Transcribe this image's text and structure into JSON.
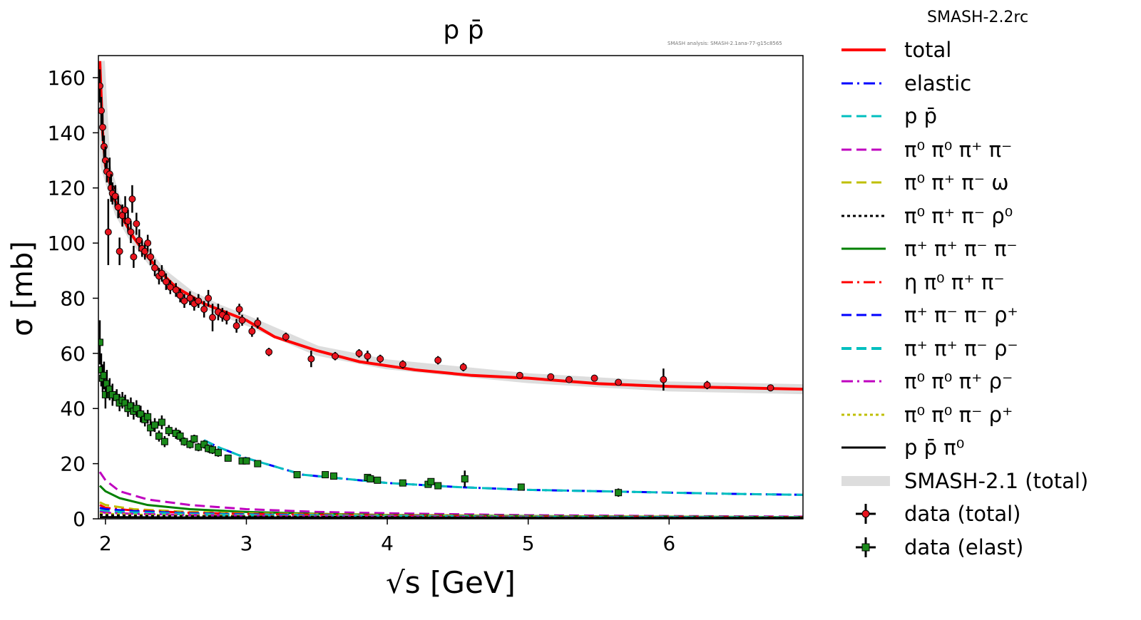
{
  "title": "p p̄",
  "watermark": "SMASH analysis: SMASH-2.1ana-77-g15c8565",
  "legend_title": "SMASH-2.2rc",
  "legend": [
    {
      "label": "total",
      "color": "#ff0000",
      "style": "solid",
      "width": 4
    },
    {
      "label": "elastic",
      "color": "#0000ff",
      "style": "dashdot",
      "width": 3
    },
    {
      "label": "p p̄",
      "color": "#00bfbf",
      "style": "dash",
      "width": 3
    },
    {
      "label": "π⁰ π⁰ π⁺ π⁻",
      "color": "#bf00bf",
      "style": "dash",
      "width": 3
    },
    {
      "label": "π⁰ π⁺ π⁻ ω",
      "color": "#bfbf00",
      "style": "dash",
      "width": 3
    },
    {
      "label": "π⁰ π⁺ π⁻ ρ⁰",
      "color": "#000000",
      "style": "dot",
      "width": 3
    },
    {
      "label": "π⁺ π⁺ π⁻ π⁻",
      "color": "#008000",
      "style": "solid",
      "width": 3
    },
    {
      "label": "η π⁰ π⁺ π⁻",
      "color": "#ff0000",
      "style": "dashdot",
      "width": 3
    },
    {
      "label": "π⁺ π⁻ π⁻ ρ⁺",
      "color": "#0000ff",
      "style": "dash",
      "width": 3
    },
    {
      "label": "π⁺ π⁺ π⁻ ρ⁻",
      "color": "#00bfbf",
      "style": "dash",
      "width": 4
    },
    {
      "label": "π⁰ π⁰ π⁺ ρ⁻",
      "color": "#bf00bf",
      "style": "dashdot",
      "width": 3
    },
    {
      "label": "π⁰ π⁰ π⁻ ρ⁺",
      "color": "#bfbf00",
      "style": "dot",
      "width": 3
    },
    {
      "label": "p p̄ π⁰",
      "color": "#000000",
      "style": "solid",
      "width": 3
    },
    {
      "label": "SMASH-2.1 (total)",
      "color": "#dddddd",
      "style": "band",
      "width": 14
    },
    {
      "label": "data (total)",
      "color": "#e8141e",
      "style": "marker-circle",
      "width": 3
    },
    {
      "label": "data (elast)",
      "color": "#1a8a1a",
      "style": "marker-square",
      "width": 3
    }
  ],
  "chart_data": {
    "type": "scatter",
    "xlabel": "√s [GeV]",
    "ylabel": "σ [mb]",
    "xlim": [
      1.95,
      6.95
    ],
    "ylim": [
      0,
      168
    ],
    "xticks": [
      2,
      3,
      4,
      5,
      6
    ],
    "yticks": [
      0,
      20,
      40,
      60,
      80,
      100,
      120,
      140,
      160
    ],
    "grid": false,
    "legend_position": "outside-right",
    "series": [
      {
        "name": "total",
        "kind": "line",
        "color": "#ff0000",
        "x": [
          1.96,
          1.98,
          2.0,
          2.05,
          2.1,
          2.2,
          2.3,
          2.4,
          2.5,
          2.6,
          2.7,
          2.8,
          2.9,
          3.0,
          3.2,
          3.5,
          3.8,
          4.2,
          4.6,
          5.0,
          5.5,
          6.0,
          6.5,
          6.95
        ],
        "y": [
          166,
          140,
          128,
          118,
          111,
          102,
          95,
          89,
          84,
          81,
          78,
          76,
          74,
          72,
          66,
          61,
          57,
          54,
          52,
          51,
          49,
          48,
          47.5,
          47
        ]
      },
      {
        "name": "SMASH-2.1 (total)",
        "kind": "band",
        "color": "#dddddd",
        "x": [
          1.96,
          2.0,
          2.1,
          2.2,
          2.4,
          2.6,
          2.8,
          3.0,
          3.5,
          4.0,
          5.0,
          6.0,
          6.95
        ],
        "y": [
          166,
          128,
          111,
          102,
          89,
          81,
          76,
          72,
          61,
          56,
          51,
          48,
          47
        ]
      },
      {
        "name": "elastic",
        "kind": "line",
        "color": "#0000ff",
        "x": [
          2.7,
          2.8,
          3.0,
          3.2,
          3.4,
          3.6,
          3.8,
          4.0,
          4.5,
          5.0,
          5.5,
          6.0,
          6.5,
          6.95
        ],
        "y": [
          28.5,
          26,
          22,
          19,
          16,
          15,
          14,
          13,
          11.5,
          10.5,
          10,
          9.5,
          9,
          8.7
        ]
      },
      {
        "name": "p p̄",
        "kind": "line",
        "color": "#00bfbf",
        "x": [
          2.7,
          2.8,
          3.0,
          3.2,
          3.4,
          3.6,
          3.8,
          4.0,
          4.5,
          5.0,
          5.5,
          6.0,
          6.5,
          6.95
        ],
        "y": [
          28.5,
          26,
          22,
          19,
          16,
          15,
          14,
          13,
          11.5,
          10.5,
          10,
          9.5,
          9,
          8.7
        ]
      },
      {
        "name": "π⁰ π⁰ π⁺ π⁻",
        "kind": "line",
        "color": "#bf00bf",
        "x": [
          1.96,
          2.0,
          2.1,
          2.3,
          2.6,
          3.0,
          3.5,
          4.0,
          5.0,
          6.0,
          6.95
        ],
        "y": [
          17,
          14,
          10,
          7,
          5,
          3.5,
          2.5,
          2,
          1.3,
          1,
          0.8
        ]
      },
      {
        "name": "π⁺ π⁺ π⁻ π⁻",
        "kind": "line",
        "color": "#008000",
        "x": [
          1.96,
          2.0,
          2.1,
          2.3,
          2.6,
          3.0,
          3.5,
          4.0,
          5.0,
          6.0,
          6.95
        ],
        "y": [
          12,
          10,
          7.5,
          5,
          3.5,
          2.5,
          1.8,
          1.4,
          1,
          0.8,
          0.6
        ]
      },
      {
        "name": "π⁰ π⁺ π⁻ ω",
        "kind": "line",
        "color": "#bfbf00",
        "x": [
          1.96,
          2.0,
          2.2,
          2.6,
          3.0,
          4.0,
          5.0,
          6.95
        ],
        "y": [
          6,
          5,
          3.5,
          2.5,
          2,
          1.3,
          0.9,
          0.6
        ]
      },
      {
        "name": "η π⁰ π⁺ π⁻",
        "kind": "line",
        "color": "#ff0000",
        "x": [
          1.96,
          2.0,
          2.2,
          2.6,
          3.0,
          4.0,
          5.0,
          6.95
        ],
        "y": [
          5,
          4,
          3,
          2.2,
          1.8,
          1.2,
          0.8,
          0.5
        ]
      },
      {
        "name": "π⁺ π⁻ π⁻ ρ⁺",
        "kind": "line",
        "color": "#0000ff",
        "x": [
          1.96,
          2.0,
          2.2,
          2.6,
          3.0,
          4.0,
          5.0,
          6.95
        ],
        "y": [
          4,
          3.5,
          2.8,
          2,
          1.6,
          1,
          0.7,
          0.4
        ]
      },
      {
        "name": "π⁺ π⁺ π⁻ ρ⁻",
        "kind": "line",
        "color": "#00bfbf",
        "x": [
          1.96,
          2.0,
          2.2,
          2.6,
          3.0,
          4.0,
          5.0,
          6.95
        ],
        "y": [
          3,
          2.6,
          2.2,
          1.7,
          1.3,
          0.9,
          0.6,
          0.4
        ]
      },
      {
        "name": "π⁰ π⁰ π⁺ ρ⁻",
        "kind": "line",
        "color": "#bf00bf",
        "x": [
          1.96,
          2.0,
          2.2,
          2.6,
          3.0,
          4.0,
          5.0,
          6.95
        ],
        "y": [
          2.5,
          2.2,
          1.8,
          1.4,
          1.1,
          0.8,
          0.5,
          0.3
        ]
      },
      {
        "name": "π⁰ π⁰ π⁻ ρ⁺",
        "kind": "line",
        "color": "#bfbf00",
        "x": [
          1.96,
          2.0,
          2.2,
          2.6,
          3.0,
          4.0,
          5.0,
          6.95
        ],
        "y": [
          2,
          1.8,
          1.5,
          1.2,
          1,
          0.7,
          0.5,
          0.3
        ]
      },
      {
        "name": "π⁰ π⁺ π⁻ ρ⁰",
        "kind": "line",
        "color": "#000000",
        "x": [
          1.96,
          2.0,
          2.2,
          2.6,
          3.0,
          4.0,
          5.0,
          6.95
        ],
        "y": [
          1.5,
          1.3,
          1.1,
          0.9,
          0.8,
          0.6,
          0.4,
          0.3
        ]
      },
      {
        "name": "p p̄ π⁰",
        "kind": "line",
        "color": "#000000",
        "x": [
          1.96,
          2.0,
          2.5,
          3.0,
          4.0,
          5.0,
          6.95
        ],
        "y": [
          0.6,
          0.6,
          0.5,
          0.5,
          0.4,
          0.3,
          0.3
        ]
      },
      {
        "name": "data (total)",
        "kind": "points",
        "marker": "circle",
        "color": "#e8141e",
        "x": [
          1.96,
          1.97,
          1.98,
          1.99,
          2.0,
          2.01,
          2.02,
          2.03,
          2.04,
          2.05,
          2.07,
          2.09,
          2.1,
          2.12,
          2.14,
          2.16,
          2.18,
          2.19,
          2.2,
          2.22,
          2.24,
          2.26,
          2.28,
          2.3,
          2.32,
          2.35,
          2.38,
          2.4,
          2.43,
          2.46,
          2.5,
          2.53,
          2.56,
          2.6,
          2.63,
          2.66,
          2.7,
          2.73,
          2.76,
          2.8,
          2.83,
          2.86,
          2.93,
          2.95,
          2.97,
          3.04,
          3.08,
          3.16,
          3.28,
          3.46,
          3.63,
          3.8,
          3.86,
          3.95,
          4.11,
          4.36,
          4.54,
          4.94,
          5.16,
          5.29,
          5.47,
          5.64,
          5.96,
          6.27,
          6.72
        ],
        "y": [
          157,
          148,
          142,
          135,
          130,
          126,
          104,
          125,
          120,
          118,
          117,
          113,
          97,
          110,
          112,
          108,
          104,
          116,
          95,
          107,
          101,
          98,
          97,
          100,
          95,
          91,
          88,
          89,
          86,
          84,
          83,
          81,
          79,
          80,
          78,
          79,
          76,
          80,
          73,
          75,
          74,
          73,
          70,
          76,
          72,
          68,
          71,
          60.5,
          66,
          58,
          59,
          60,
          59,
          58,
          56,
          57.5,
          55,
          52,
          51.5,
          50.5,
          51,
          49.5,
          50.5,
          48.5,
          47.5
        ],
        "yerr": [
          6,
          5,
          5,
          4,
          5,
          4,
          12,
          6,
          5,
          4,
          4,
          4,
          5,
          4,
          5,
          4,
          4,
          5,
          4,
          4,
          4,
          3,
          3,
          3,
          3,
          3,
          3,
          3,
          3,
          2.5,
          2.5,
          2.5,
          2.5,
          2.5,
          2.5,
          2.5,
          3,
          3,
          5,
          3,
          2.5,
          2.5,
          2.5,
          2,
          2,
          2,
          2,
          1.5,
          1.5,
          3,
          1.5,
          1.5,
          2,
          1.5,
          1.5,
          1.5,
          1.5,
          1,
          1,
          1,
          1,
          1,
          4,
          1.5,
          1
        ]
      },
      {
        "name": "data (elast)",
        "kind": "points",
        "marker": "square",
        "color": "#1a8a1a",
        "x": [
          1.96,
          1.97,
          1.98,
          1.99,
          2.0,
          2.01,
          2.03,
          2.05,
          2.08,
          2.1,
          2.12,
          2.14,
          2.16,
          2.18,
          2.2,
          2.22,
          2.25,
          2.28,
          2.3,
          2.32,
          2.35,
          2.38,
          2.4,
          2.42,
          2.45,
          2.5,
          2.53,
          2.56,
          2.6,
          2.63,
          2.66,
          2.7,
          2.73,
          2.76,
          2.8,
          2.87,
          2.97,
          3.0,
          3.08,
          3.36,
          3.56,
          3.62,
          3.86,
          3.88,
          3.93,
          4.11,
          4.29,
          4.31,
          4.36,
          4.55,
          4.95,
          5.64
        ],
        "y": [
          64,
          54,
          51,
          52,
          45,
          49,
          47,
          45,
          44,
          42,
          43,
          42,
          40,
          41,
          39,
          40,
          38,
          36,
          37,
          33,
          34,
          30,
          35,
          28,
          32,
          31,
          30,
          28,
          27,
          29,
          26,
          27,
          25.5,
          25,
          24,
          22,
          21,
          21,
          20,
          16,
          16,
          15.5,
          15,
          14.5,
          14,
          13,
          12.5,
          13.5,
          12,
          14.5,
          11.5,
          9.5
        ],
        "yerr": [
          8,
          6,
          5,
          5,
          5,
          5,
          4,
          4,
          3,
          3,
          3,
          3,
          3,
          3,
          3,
          3,
          3,
          2.5,
          2.5,
          3,
          2.5,
          2,
          2.5,
          2,
          2,
          2,
          2,
          1.5,
          1.5,
          1.5,
          1.5,
          1.5,
          1.5,
          1.5,
          1.5,
          1.2,
          1.2,
          1.2,
          1.2,
          1,
          1,
          1,
          1,
          1,
          1,
          1,
          1,
          1,
          1,
          3,
          1,
          1.5
        ]
      }
    ]
  }
}
